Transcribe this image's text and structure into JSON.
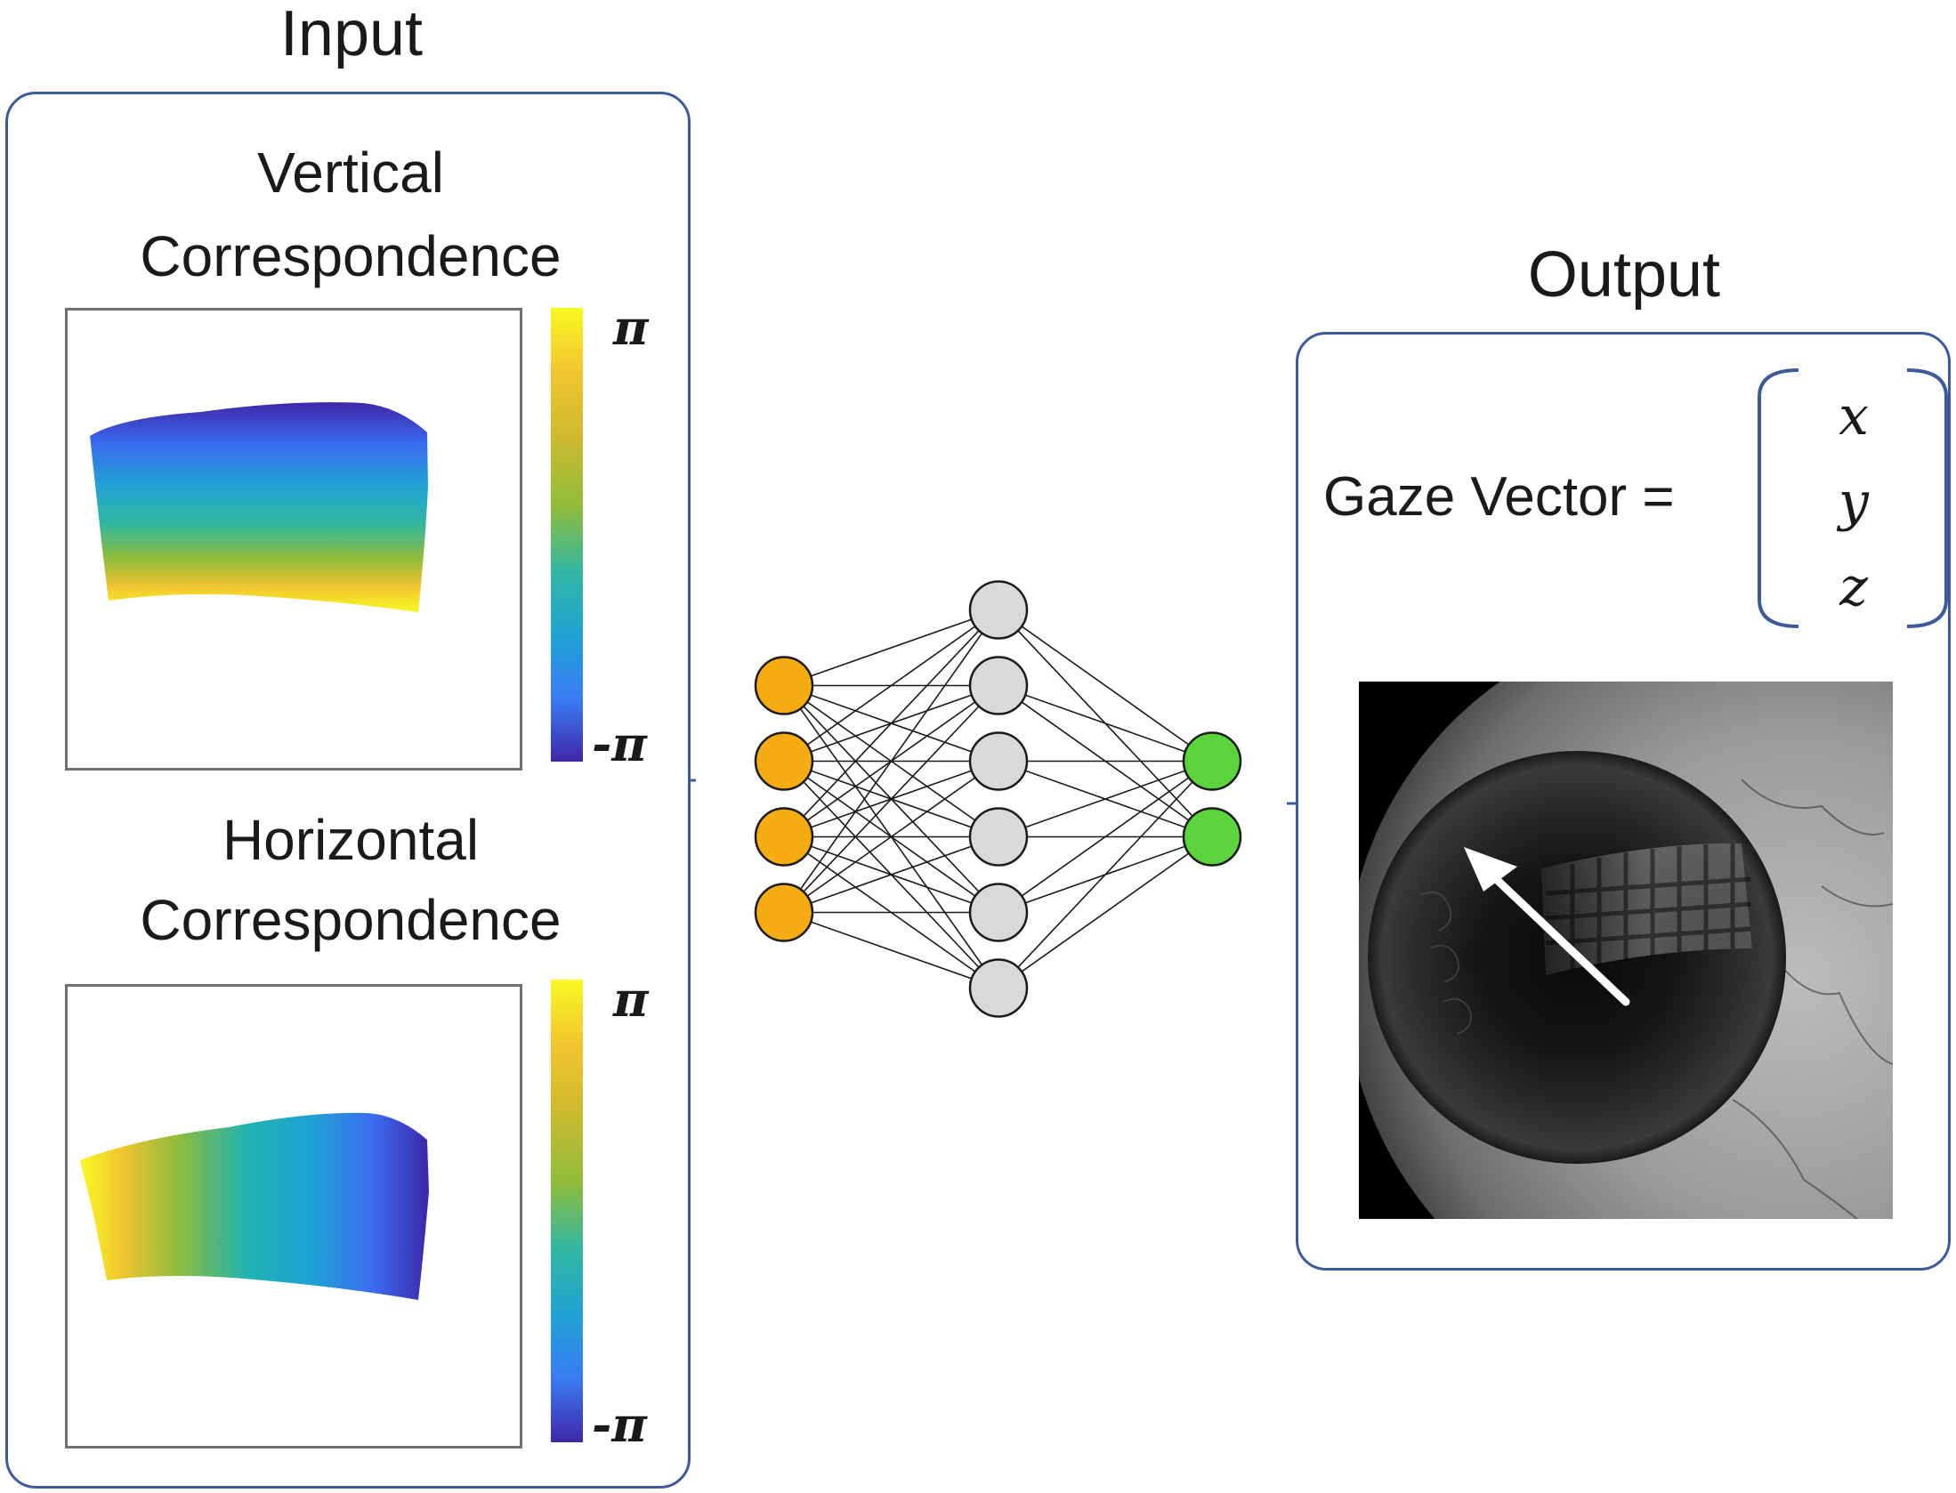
{
  "input": {
    "title": "Input",
    "vertical": {
      "heading_line1": "Vertical",
      "heading_line2": "Correspondence",
      "scale_max": "π",
      "scale_min": "-π"
    },
    "horizontal": {
      "heading_line1": "Horizontal",
      "heading_line2": "Correspondence",
      "scale_max": "π",
      "scale_min": "-π"
    }
  },
  "network": {
    "layers": [
      4,
      6,
      2
    ],
    "colors": {
      "input": "#f5ac10",
      "hidden": "#d9d9d9",
      "output": "#5bd43c",
      "stroke": "#1a1a1a"
    }
  },
  "output": {
    "title": "Output",
    "gaze_label": "Gaze Vector =",
    "vector": [
      "x",
      "y",
      "z"
    ]
  },
  "colors": {
    "panel_border": "#3f5a9a"
  }
}
